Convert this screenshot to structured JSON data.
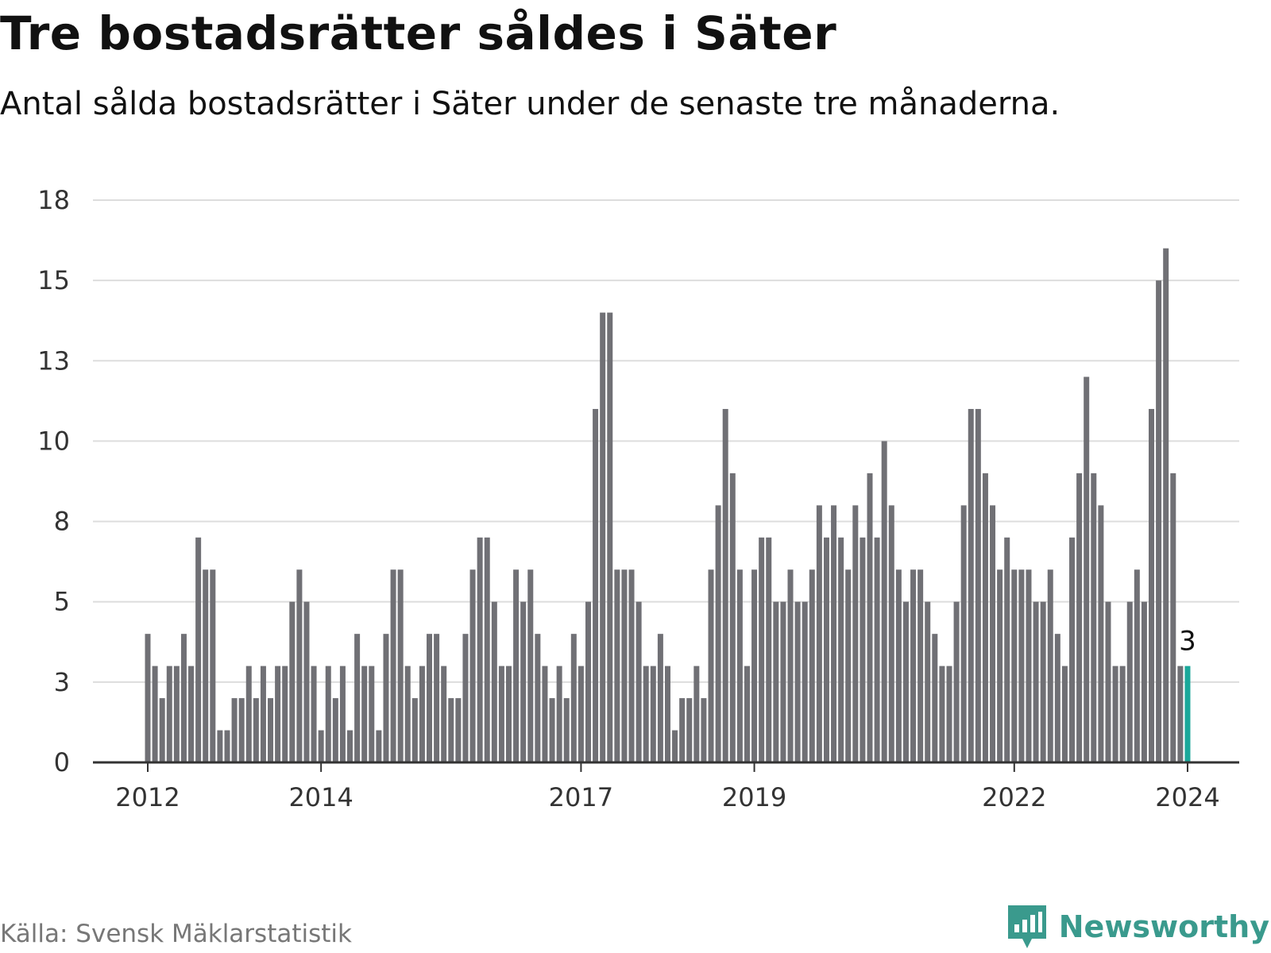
{
  "header": {
    "title": "Tre bostadsrätter såldes i Säter",
    "subtitle": "Antal sålda bostadsrätter i Säter under de senaste tre månaderna."
  },
  "footer": {
    "source": "Källa: Svensk Mäklarstatistik",
    "brand": "Newsworthy"
  },
  "colors": {
    "bar": "#707075",
    "highlight": "#1aa89a",
    "grid": "#dddddd",
    "axis": "#333333",
    "brand": "#3a9a8d"
  },
  "chart_data": {
    "type": "bar",
    "title": "Tre bostadsrätter såldes i Säter",
    "xlabel": "",
    "ylabel": "",
    "ylim": [
      0,
      17.5
    ],
    "grid": true,
    "legend": "none",
    "y_ticks": [
      {
        "value": 0,
        "label": "0"
      },
      {
        "value": 2.5,
        "label": "3"
      },
      {
        "value": 5,
        "label": "5"
      },
      {
        "value": 7.5,
        "label": "8"
      },
      {
        "value": 10,
        "label": "10"
      },
      {
        "value": 12.5,
        "label": "13"
      },
      {
        "value": 15,
        "label": "15"
      },
      {
        "value": 17.5,
        "label": "18"
      }
    ],
    "x_ticks": [
      {
        "index": 0,
        "label": "2012"
      },
      {
        "index": 24,
        "label": "2014"
      },
      {
        "index": 60,
        "label": "2017"
      },
      {
        "index": 84,
        "label": "2019"
      },
      {
        "index": 120,
        "label": "2022"
      },
      {
        "index": 144,
        "label": "2024"
      }
    ],
    "values": [
      4,
      3,
      2,
      3,
      3,
      4,
      3,
      7,
      6,
      6,
      1,
      1,
      2,
      2,
      3,
      2,
      3,
      2,
      3,
      3,
      5,
      6,
      5,
      3,
      1,
      3,
      2,
      3,
      1,
      4,
      3,
      3,
      1,
      4,
      6,
      6,
      3,
      2,
      3,
      4,
      4,
      3,
      2,
      2,
      4,
      6,
      7,
      7,
      5,
      3,
      3,
      6,
      5,
      6,
      4,
      3,
      2,
      3,
      2,
      4,
      3,
      5,
      11,
      14,
      14,
      6,
      6,
      6,
      5,
      3,
      3,
      4,
      3,
      1,
      2,
      2,
      3,
      2,
      6,
      8,
      11,
      9,
      6,
      3,
      6,
      7,
      7,
      5,
      5,
      6,
      5,
      5,
      6,
      8,
      7,
      8,
      7,
      6,
      8,
      7,
      9,
      7,
      10,
      8,
      6,
      5,
      6,
      6,
      5,
      4,
      3,
      3,
      5,
      8,
      11,
      11,
      9,
      8,
      6,
      7,
      6,
      6,
      6,
      5,
      5,
      6,
      4,
      3,
      7,
      9,
      12,
      9,
      8,
      5,
      3,
      3,
      5,
      6,
      5,
      11,
      15,
      16,
      9,
      3,
      3
    ],
    "highlight_index": 144,
    "highlight_label": "3"
  }
}
